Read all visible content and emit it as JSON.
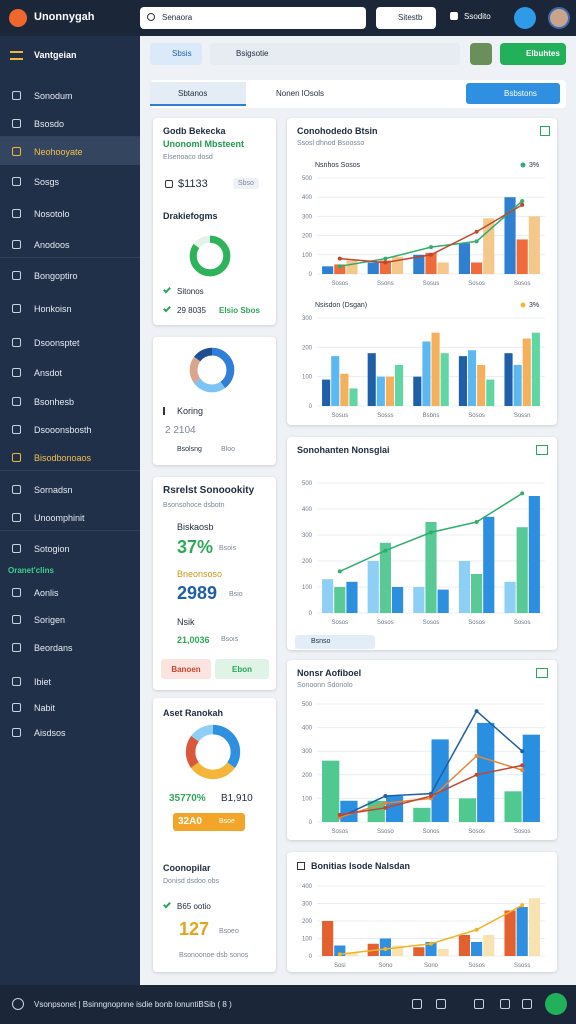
{
  "header": {
    "brand": "Unonnygah",
    "search": "Senaora",
    "action": "Sitestb",
    "user": "Ssodito"
  },
  "sidebar": {
    "title": "Vantgeian",
    "items": [
      "Sonodum",
      "Bsosdo",
      "Neohooyate",
      "Sosgs",
      "Nosotolo",
      "Anodoos",
      "Bongoptiro",
      "Honkoisn",
      "Dsoonsptet",
      "Ansdot",
      "Bsonhesb",
      "Dsooonsbosth",
      "Bisodbonoaos",
      "Sornadsn",
      "Unoomphinit",
      "Sotogion"
    ],
    "section": "Oranet'clins",
    "items2": [
      "Aonlis",
      "Sorigen",
      "Beordans",
      "Ibiet",
      "Nabit",
      "Aisdsos"
    ]
  },
  "toolbar": {
    "tab": "Sbsis",
    "search": "Bsigsotie",
    "button": "Elbuhtes"
  },
  "filter": {
    "select": "Sbtanos",
    "option": "Nonen lOsols",
    "button": "Bsbstons"
  },
  "cards": [
    {
      "title": "Godb Bekecka",
      "subtitle": "Unonoml Mbsteent",
      "caption": "Elsenoaco dosd",
      "value": "$1133",
      "badge": "Sbso",
      "section": "Drakiefogms",
      "donut": {
        "values": [
          85,
          15
        ],
        "colors": [
          "#2fb35a",
          "#e3f3e8"
        ]
      },
      "items": [
        "Sitonos",
        "29 8035"
      ],
      "tag": "Elsio Sbos"
    },
    {
      "donut": {
        "values": [
          40,
          25,
          20,
          15
        ],
        "colors": [
          "#2f7fd6",
          "#7cc4f4",
          "#d9a58c",
          "#1f4f8f"
        ]
      },
      "label": "Koring",
      "value": "2 2104",
      "caption": "Bsolsng",
      "tag": "Bloo"
    },
    {
      "title": "Rsrelst Sonoookity",
      "subtitle": "Bsonsohoce dsbotn",
      "rows": [
        {
          "label": "Biskaosb",
          "value": "37%",
          "unit": "Bsois"
        },
        {
          "label": "Bneonsoso",
          "value": "2989",
          "unit": "Bsio"
        },
        {
          "label": "Nsik",
          "value": "21,0036",
          "unit": "Bsois"
        }
      ],
      "buttons": [
        "Banoen",
        "Ebon"
      ]
    },
    {
      "title": "Aset Ranokah",
      "donut": {
        "values": [
          35,
          30,
          20,
          15
        ],
        "colors": [
          "#2f8fe0",
          "#f3b53a",
          "#d9573a",
          "#8ecff5"
        ]
      },
      "value": "35770%",
      "value2": "B1,910",
      "badge": "32A0",
      "badge_note": "Bsoe",
      "section": "Coonopilar",
      "section_note": "Donisd dsdoo obs",
      "item": "B65 ootio",
      "big": "127",
      "big_note": "Bsoeo",
      "footer": "Bsonoonoe dsb sonos"
    }
  ],
  "charts": [
    {
      "title": "Conohodedo Btsin",
      "subtitle": "Ssosl dhnod Bsoosso",
      "legend": "Nsnhos Sosos",
      "note": "3%",
      "note_color": "#2fae6d",
      "categories": [
        "Sosos",
        "Ssons",
        "Sosus",
        "Sosos",
        "Sosos"
      ],
      "ylim": [
        0,
        500
      ],
      "yticks": [
        0,
        100,
        200,
        300,
        400,
        500
      ],
      "bars": [
        {
          "color": "#2f80d1",
          "values": [
            40,
            60,
            100,
            160,
            400
          ]
        },
        {
          "color": "#ef6c3a",
          "values": [
            50,
            70,
            110,
            60,
            180
          ]
        },
        {
          "color": "#f3c88a",
          "values": [
            70,
            90,
            60,
            290,
            300
          ]
        }
      ],
      "lines": [
        {
          "color": "#2fae6d",
          "values": [
            40,
            80,
            140,
            170,
            380
          ]
        },
        {
          "color": "#c0462d",
          "values": [
            80,
            60,
            100,
            220,
            360
          ]
        }
      ]
    },
    {
      "legend": "Nsisdon (Dsgan)",
      "note": "3%",
      "note_color": "#f3b53a",
      "categories": [
        "Sosus",
        "Sosss",
        "Bsbns",
        "Sosos",
        "Sossn"
      ],
      "ylim": [
        0,
        300
      ],
      "yticks": [
        0,
        100,
        200,
        300
      ],
      "bars": [
        {
          "color": "#1f5fa8",
          "values": [
            90,
            180,
            100,
            170,
            180
          ]
        },
        {
          "color": "#5cb8f0",
          "values": [
            170,
            100,
            220,
            190,
            140
          ]
        },
        {
          "color": "#f4b05a",
          "values": [
            110,
            100,
            250,
            140,
            230
          ]
        },
        {
          "color": "#5fd6a4",
          "values": [
            60,
            140,
            180,
            90,
            250
          ]
        }
      ],
      "lines": []
    },
    {
      "title": "Sonohanten Nonsglai",
      "chip": "Bsnso",
      "categories": [
        "Sosos",
        "Sosos",
        "Sosos",
        "Sosos",
        "Sosos"
      ],
      "ylim": [
        0,
        500
      ],
      "yticks": [
        0,
        100,
        200,
        300,
        400,
        500
      ],
      "bars": [
        {
          "color": "#8ecff5",
          "values": [
            130,
            200,
            100,
            200,
            120
          ]
        },
        {
          "color": "#59c995",
          "values": [
            100,
            270,
            350,
            150,
            330
          ]
        },
        {
          "color": "#2c8fe0",
          "values": [
            120,
            100,
            90,
            370,
            450
          ]
        }
      ],
      "lines": [
        {
          "color": "#2fae6d",
          "values": [
            160,
            240,
            310,
            350,
            460
          ]
        }
      ]
    },
    {
      "title": "Nonsr Aofiboel",
      "subtitle": "Sonoonn Sdonolo",
      "categories": [
        "Sosos",
        "Ssoso",
        "Sonos",
        "Sosos",
        "Sosos"
      ],
      "ylim": [
        0,
        500
      ],
      "yticks": [
        0,
        100,
        200,
        300,
        400,
        500
      ],
      "bars": [
        {
          "color": "#4fc98f",
          "values": [
            260,
            90,
            60,
            100,
            130
          ]
        },
        {
          "color": "#2a8fe0",
          "values": [
            90,
            110,
            350,
            420,
            370
          ]
        }
      ],
      "lines": [
        {
          "color": "#1f5fa8",
          "values": [
            20,
            110,
            120,
            470,
            300
          ]
        },
        {
          "color": "#e6873a",
          "values": [
            20,
            80,
            100,
            280,
            220
          ]
        },
        {
          "color": "#c0462d",
          "values": [
            30,
            60,
            110,
            200,
            240
          ]
        }
      ]
    },
    {
      "title": "Bonitias Isode Nalsdan",
      "categories": [
        "Sosi",
        "Sono",
        "Sono",
        "Sosos",
        "Ssoss"
      ],
      "ylim": [
        0,
        400
      ],
      "yticks": [
        0,
        100,
        200,
        300,
        400
      ],
      "bars": [
        {
          "color": "#e4602f",
          "values": [
            200,
            70,
            50,
            120,
            260
          ]
        },
        {
          "color": "#2f8fe0",
          "values": [
            60,
            100,
            80,
            80,
            280
          ]
        },
        {
          "color": "#f6e3b0",
          "values": [
            20,
            60,
            40,
            120,
            330
          ]
        }
      ],
      "lines": [
        {
          "color": "#f0b429",
          "values": [
            10,
            40,
            70,
            150,
            290
          ]
        }
      ]
    }
  ],
  "footer": {
    "text": "Vsonpsonet | Bsinngnopnne isdie bonb lonuntiBSib ( 8 )"
  }
}
